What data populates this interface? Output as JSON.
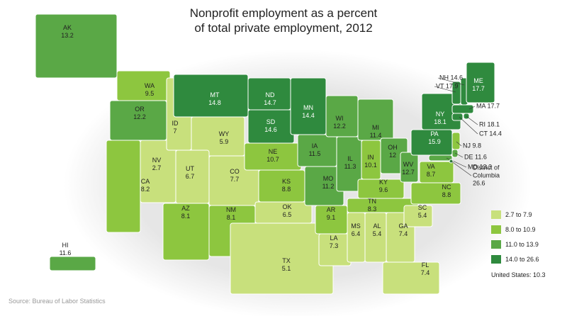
{
  "title_lines": [
    "Nonprofit employment as a percent",
    "of total private employment, 2012"
  ],
  "states": [
    {
      "abbr": "WA",
      "value": 9.5
    },
    {
      "abbr": "OR",
      "value": 12.2
    },
    {
      "abbr": "CA",
      "value": 8.2
    },
    {
      "abbr": "NV",
      "value": 2.7
    },
    {
      "abbr": "ID",
      "value": 7
    },
    {
      "abbr": "MT",
      "value": 14.8
    },
    {
      "abbr": "WY",
      "value": 5.9
    },
    {
      "abbr": "UT",
      "value": 6.7
    },
    {
      "abbr": "CO",
      "value": 7.7
    },
    {
      "abbr": "AZ",
      "value": 8.1
    },
    {
      "abbr": "NM",
      "value": 8.1
    },
    {
      "abbr": "ND",
      "value": 14.7
    },
    {
      "abbr": "SD",
      "value": 14.6
    },
    {
      "abbr": "NE",
      "value": 10.7
    },
    {
      "abbr": "KS",
      "value": 8.8
    },
    {
      "abbr": "OK",
      "value": 6.5
    },
    {
      "abbr": "TX",
      "value": 5.1
    },
    {
      "abbr": "MN",
      "value": 14.4
    },
    {
      "abbr": "IA",
      "value": 11.5
    },
    {
      "abbr": "MO",
      "value": 11.2
    },
    {
      "abbr": "AR",
      "value": 9.1
    },
    {
      "abbr": "LA",
      "value": 7.3
    },
    {
      "abbr": "WI",
      "value": 12.2
    },
    {
      "abbr": "IL",
      "value": 11.3
    },
    {
      "abbr": "MI",
      "value": 11.4
    },
    {
      "abbr": "IN",
      "value": 10.1
    },
    {
      "abbr": "OH",
      "value": 12
    },
    {
      "abbr": "KY",
      "value": 9.6
    },
    {
      "abbr": "TN",
      "value": 8.3
    },
    {
      "abbr": "MS",
      "value": 6.4
    },
    {
      "abbr": "AL",
      "value": 5.4
    },
    {
      "abbr": "GA",
      "value": 7.4
    },
    {
      "abbr": "FL",
      "value": 7.4
    },
    {
      "abbr": "SC",
      "value": 5.4
    },
    {
      "abbr": "NC",
      "value": 8.8
    },
    {
      "abbr": "VA",
      "value": 8.7
    },
    {
      "abbr": "WV",
      "value": 12.7
    },
    {
      "abbr": "PA",
      "value": 15.9
    },
    {
      "abbr": "NY",
      "value": 18.1
    },
    {
      "abbr": "VT",
      "value": 17.9
    },
    {
      "abbr": "NH",
      "value": 14.6
    },
    {
      "abbr": "ME",
      "value": 17.7
    },
    {
      "abbr": "MA",
      "value": 17.7
    },
    {
      "abbr": "CT",
      "value": 14.4
    },
    {
      "abbr": "RI",
      "value": 18.1
    },
    {
      "abbr": "NJ",
      "value": 9.8
    },
    {
      "abbr": "DE",
      "value": 11.6
    },
    {
      "abbr": "MD",
      "value": 13.3
    },
    {
      "abbr": "District of Columbia",
      "value": 26.6
    },
    {
      "abbr": "AK",
      "value": 13.2
    },
    {
      "abbr": "HI",
      "value": 11.6
    }
  ],
  "legend": [
    {
      "label": "2.7 to 7.9",
      "min": 2.7,
      "max": 7.9,
      "color": "#c8e07c"
    },
    {
      "label": "8.0 to 10.9",
      "min": 8.0,
      "max": 10.9,
      "color": "#8dc63f"
    },
    {
      "label": "11.0 to 13.9",
      "min": 11.0,
      "max": 13.9,
      "color": "#5aa846"
    },
    {
      "label": "14.0 to 26.6",
      "min": 14.0,
      "max": 26.6,
      "color": "#2f8a3e"
    }
  ],
  "us_total": "United States: 10.3",
  "source": "Source: Bureau of Labor Statistics"
}
